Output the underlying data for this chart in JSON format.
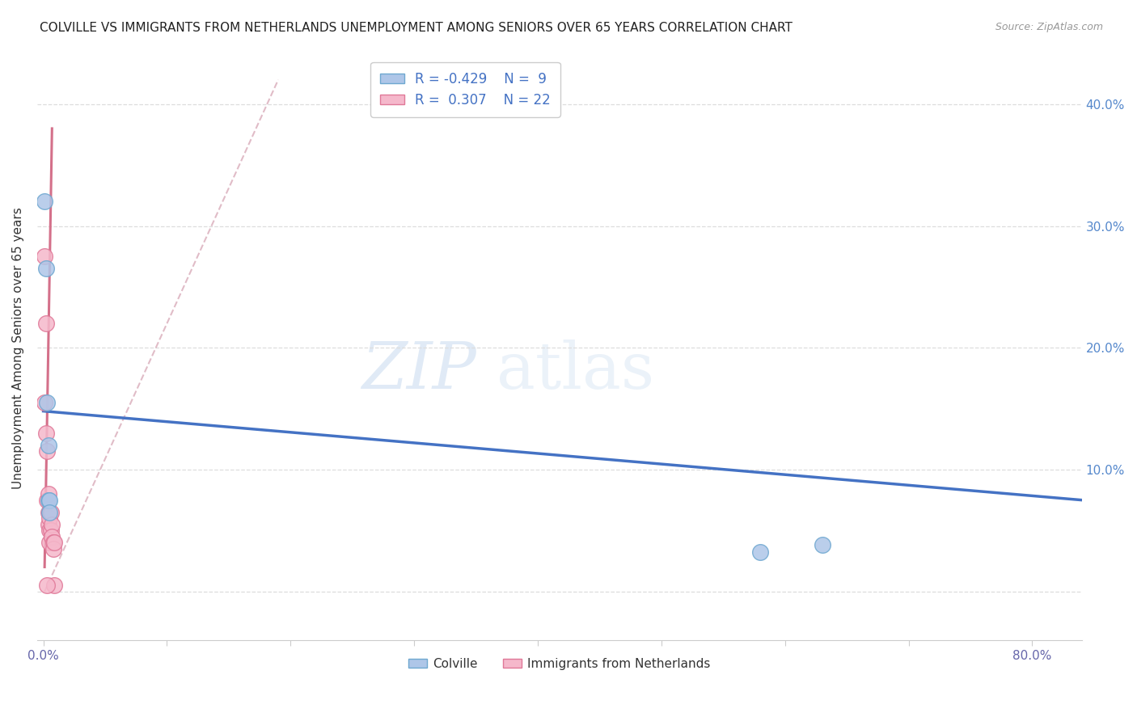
{
  "title": "COLVILLE VS IMMIGRANTS FROM NETHERLANDS UNEMPLOYMENT AMONG SENIORS OVER 65 YEARS CORRELATION CHART",
  "source": "Source: ZipAtlas.com",
  "ylabel": "Unemployment Among Seniors over 65 years",
  "x_ticks": [
    0.0,
    0.1,
    0.2,
    0.3,
    0.4,
    0.5,
    0.6,
    0.7,
    0.8
  ],
  "y_ticks": [
    0.0,
    0.1,
    0.2,
    0.3,
    0.4
  ],
  "xlim": [
    -0.005,
    0.84
  ],
  "ylim": [
    -0.04,
    0.44
  ],
  "colville_color": "#aec6e8",
  "colville_edge_color": "#6fa8d0",
  "immigrants_color": "#f5b8cb",
  "immigrants_edge_color": "#e07898",
  "trend_blue_color": "#4472c4",
  "trend_pink_color": "#d4708a",
  "trend_dashed_color": "#d4a0b0",
  "legend_R_blue": "-0.429",
  "legend_N_blue": "9",
  "legend_R_pink": "0.307",
  "legend_N_pink": "22",
  "legend_label_blue": "Colville",
  "legend_label_pink": "Immigrants from Netherlands",
  "watermark_zip": "ZIP",
  "watermark_atlas": "atlas",
  "colville_x": [
    0.001,
    0.002,
    0.003,
    0.004,
    0.004,
    0.005,
    0.005,
    0.58,
    0.63
  ],
  "colville_y": [
    0.32,
    0.265,
    0.155,
    0.12,
    0.075,
    0.075,
    0.065,
    0.032,
    0.038
  ],
  "immigrants_x": [
    0.001,
    0.001,
    0.002,
    0.002,
    0.003,
    0.003,
    0.004,
    0.004,
    0.004,
    0.005,
    0.005,
    0.005,
    0.005,
    0.006,
    0.006,
    0.007,
    0.007,
    0.008,
    0.008,
    0.009,
    0.009,
    0.003
  ],
  "immigrants_y": [
    0.275,
    0.155,
    0.22,
    0.13,
    0.115,
    0.075,
    0.08,
    0.065,
    0.055,
    0.065,
    0.06,
    0.05,
    0.04,
    0.065,
    0.05,
    0.055,
    0.045,
    0.04,
    0.035,
    0.04,
    0.005,
    0.005
  ],
  "blue_trend_x": [
    0.0,
    0.84
  ],
  "blue_trend_y": [
    0.148,
    0.075
  ],
  "pink_trend_x": [
    0.001,
    0.007
  ],
  "pink_trend_y": [
    0.02,
    0.38
  ],
  "dashed_trend_x": [
    0.001,
    0.19
  ],
  "dashed_trend_y": [
    0.0,
    0.42
  ],
  "marker_size": 200,
  "background_color": "#ffffff",
  "grid_color": "#dddddd"
}
